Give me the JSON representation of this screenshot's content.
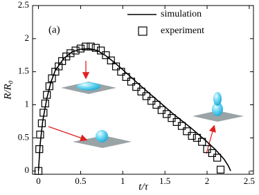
{
  "chart_data": {
    "type": "line",
    "annotation": "(a)",
    "x_label": "t/τ",
    "y_label": "R/R₀",
    "xlim": [
      -0.07,
      2.55
    ],
    "ylim": [
      -0.05,
      2.5
    ],
    "xticks": [
      0,
      0.5,
      1,
      1.5,
      2,
      2.5
    ],
    "yticks": [
      0,
      0.5,
      1,
      1.5,
      2,
      2.5
    ],
    "legend": "upper right",
    "series": [
      {
        "name": "simulation",
        "style": "line",
        "color": "#000000",
        "x": [
          0,
          0.02,
          0.05,
          0.1,
          0.15,
          0.2,
          0.3,
          0.4,
          0.5,
          0.6,
          0.7,
          0.8,
          0.9,
          1.0,
          1.2,
          1.4,
          1.6,
          1.8,
          2.0,
          2.1,
          2.2,
          2.25,
          2.28
        ],
        "values": [
          0,
          0.4,
          0.75,
          1.1,
          1.35,
          1.52,
          1.7,
          1.8,
          1.84,
          1.85,
          1.82,
          1.74,
          1.64,
          1.53,
          1.3,
          1.08,
          0.86,
          0.66,
          0.44,
          0.32,
          0.18,
          0.08,
          0
        ]
      },
      {
        "name": "experiment",
        "style": "square",
        "color": "#000000",
        "x": [
          0,
          0.01,
          0.02,
          0.04,
          0.06,
          0.08,
          0.1,
          0.13,
          0.16,
          0.2,
          0.24,
          0.28,
          0.33,
          0.38,
          0.44,
          0.5,
          0.56,
          0.62,
          0.68,
          0.74,
          0.8,
          0.86,
          0.92,
          0.98,
          1.04,
          1.1,
          1.16,
          1.22,
          1.28,
          1.34,
          1.4,
          1.46,
          1.52,
          1.58,
          1.64,
          1.7,
          1.76,
          1.82,
          1.88,
          1.94,
          2.0,
          2.06,
          2.12,
          2.16
        ],
        "values": [
          0,
          0.33,
          0.55,
          0.72,
          0.88,
          1.02,
          1.15,
          1.28,
          1.4,
          1.5,
          1.58,
          1.66,
          1.73,
          1.78,
          1.82,
          1.85,
          1.88,
          1.88,
          1.86,
          1.82,
          1.75,
          1.67,
          1.58,
          1.5,
          1.42,
          1.35,
          1.27,
          1.2,
          1.13,
          1.06,
          1.0,
          0.92,
          0.86,
          0.8,
          0.74,
          0.68,
          0.6,
          0.53,
          0.5,
          0.44,
          0.33,
          0.27,
          0.2,
          0.02
        ]
      }
    ]
  }
}
